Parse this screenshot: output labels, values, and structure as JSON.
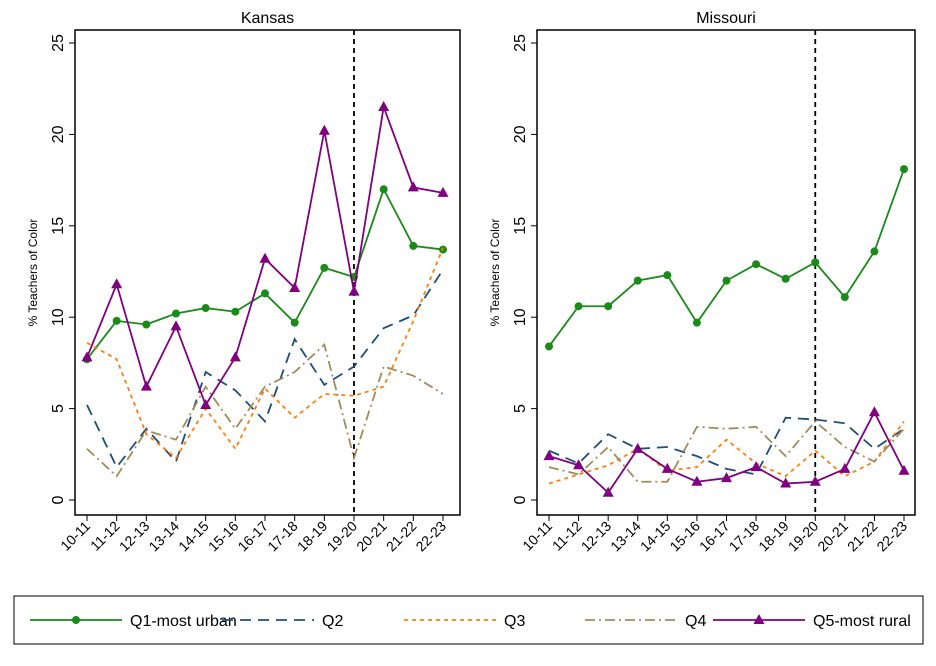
{
  "chart_data": [
    {
      "type": "line",
      "title": "Kansas",
      "ylabel": "% Teachers of Color",
      "xlabel": "",
      "ylim": [
        0,
        25
      ],
      "yticks": [
        "0",
        "5",
        "10",
        "15",
        "20",
        "25"
      ],
      "categories": [
        "10-11",
        "11-12",
        "12-13",
        "13-14",
        "14-15",
        "15-16",
        "16-17",
        "17-18",
        "18-19",
        "19-20",
        "20-21",
        "21-22",
        "22-23"
      ],
      "reference_line": "19-20",
      "grid": false,
      "series": [
        {
          "name": "Q1-most urban",
          "values": [
            7.7,
            9.8,
            9.6,
            10.2,
            10.5,
            10.3,
            11.3,
            9.7,
            12.7,
            12.2,
            17.0,
            13.9,
            13.7
          ]
        },
        {
          "name": "Q2",
          "values": [
            5.2,
            1.8,
            3.9,
            2.1,
            7.0,
            6.0,
            4.3,
            8.8,
            6.3,
            7.3,
            9.4,
            10.1,
            12.6
          ]
        },
        {
          "name": "Q3",
          "values": [
            8.6,
            7.7,
            3.6,
            2.3,
            5.0,
            2.8,
            6.1,
            4.5,
            5.8,
            5.7,
            6.2,
            9.8,
            13.8
          ]
        },
        {
          "name": "Q4",
          "values": [
            2.8,
            1.3,
            3.8,
            3.3,
            6.2,
            3.9,
            6.2,
            7.0,
            8.5,
            2.3,
            7.3,
            6.8,
            5.8
          ]
        },
        {
          "name": "Q5-most rural",
          "values": [
            7.8,
            11.8,
            6.2,
            9.5,
            5.2,
            7.8,
            13.2,
            11.6,
            20.2,
            11.4,
            21.5,
            17.1,
            16.8
          ]
        }
      ]
    },
    {
      "type": "line",
      "title": "Missouri",
      "ylabel": "% Teachers of Color",
      "xlabel": "",
      "ylim": [
        0,
        25
      ],
      "yticks": [
        "0",
        "5",
        "10",
        "15",
        "20",
        "25"
      ],
      "categories": [
        "10-11",
        "11-12",
        "12-13",
        "13-14",
        "14-15",
        "15-16",
        "16-17",
        "17-18",
        "18-19",
        "19-20",
        "20-21",
        "21-22",
        "22-23"
      ],
      "reference_line": "19-20",
      "grid": false,
      "series": [
        {
          "name": "Q1-most urban",
          "values": [
            8.4,
            10.6,
            10.6,
            12.0,
            12.3,
            9.7,
            12.0,
            12.9,
            12.1,
            13.0,
            11.1,
            13.6,
            18.1
          ]
        },
        {
          "name": "Q2",
          "values": [
            2.7,
            2.0,
            3.6,
            2.8,
            2.9,
            2.4,
            1.7,
            1.4,
            4.5,
            4.4,
            4.2,
            2.8,
            3.9
          ]
        },
        {
          "name": "Q3",
          "values": [
            0.9,
            1.4,
            1.9,
            2.8,
            1.6,
            1.8,
            3.3,
            2.0,
            1.3,
            2.7,
            1.3,
            2.1,
            4.3
          ]
        },
        {
          "name": "Q4",
          "values": [
            1.8,
            1.4,
            2.9,
            1.0,
            1.0,
            4.0,
            3.9,
            4.0,
            2.4,
            4.3,
            2.9,
            2.1,
            3.9
          ]
        },
        {
          "name": "Q5-most rural",
          "values": [
            2.4,
            1.9,
            0.4,
            2.8,
            1.7,
            1.0,
            1.2,
            1.8,
            0.9,
            1.0,
            1.7,
            4.8,
            1.6
          ]
        }
      ]
    }
  ],
  "legend": {
    "placement": "bottom",
    "entries": [
      "Q1-most urban",
      "Q2",
      "Q3",
      "Q4",
      "Q5-most rural"
    ]
  },
  "series_styles": {
    "Q1-most urban": {
      "color": "#1a8a1a",
      "dash": "solid",
      "marker": "circle"
    },
    "Q2": {
      "color": "#1f4e79",
      "dash": "long-dash",
      "marker": "none"
    },
    "Q3": {
      "color": "#ff7f0e",
      "dash": "short-dash",
      "marker": "none"
    },
    "Q4": {
      "color": "#a08c5a",
      "dash": "dash-dot",
      "marker": "none"
    },
    "Q5-most rural": {
      "color": "#800080",
      "dash": "solid",
      "marker": "triangle"
    }
  }
}
